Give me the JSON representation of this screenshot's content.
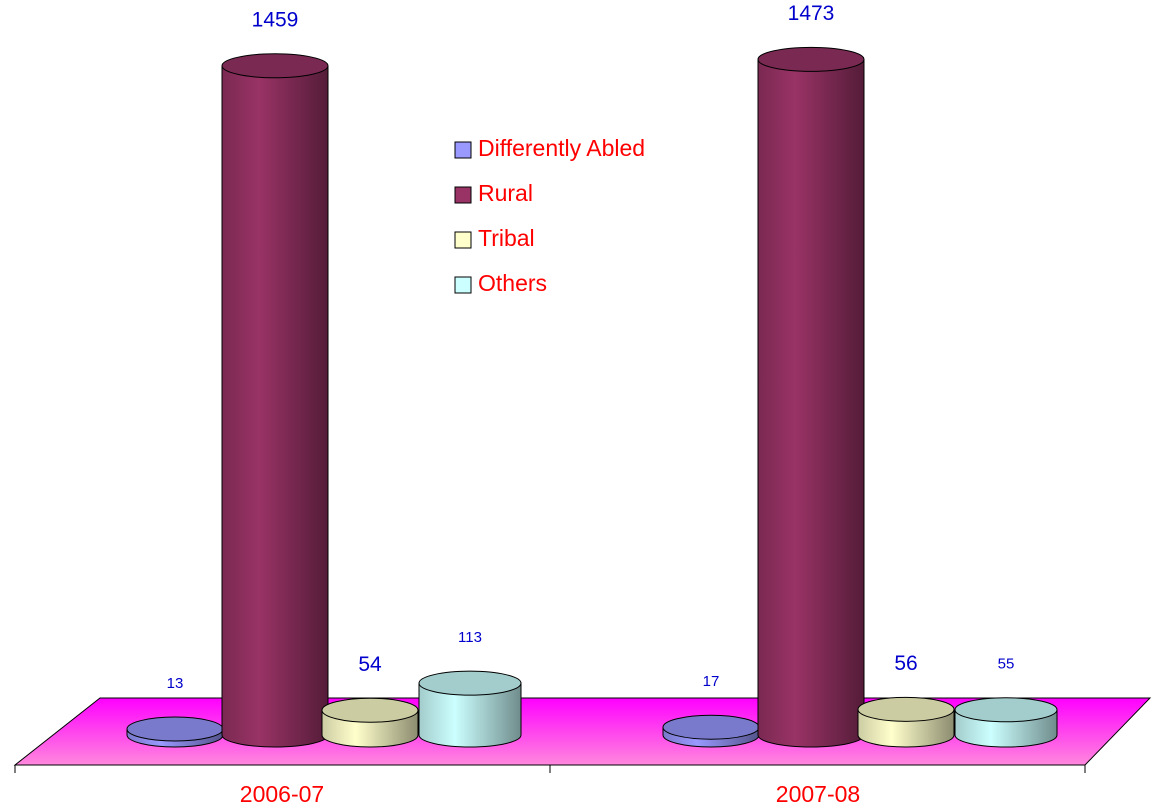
{
  "chart_data": {
    "type": "cylinder",
    "categories": [
      "2006-07",
      "2007-08"
    ],
    "series": [
      {
        "name": "Differently Abled",
        "color": "#9999ff",
        "values": [
          13,
          17
        ]
      },
      {
        "name": "Rural",
        "color": "#993366",
        "values": [
          1459,
          1473
        ]
      },
      {
        "name": "Tribal",
        "color": "#ffffcc",
        "values": [
          54,
          56
        ]
      },
      {
        "name": "Others",
        "color": "#ccffff",
        "values": [
          113,
          55
        ]
      }
    ],
    "ylim": [
      0,
      1500
    ],
    "floor_color": "#ff00ff",
    "label_color": "#0000cc",
    "text_color": "#ff0000"
  }
}
